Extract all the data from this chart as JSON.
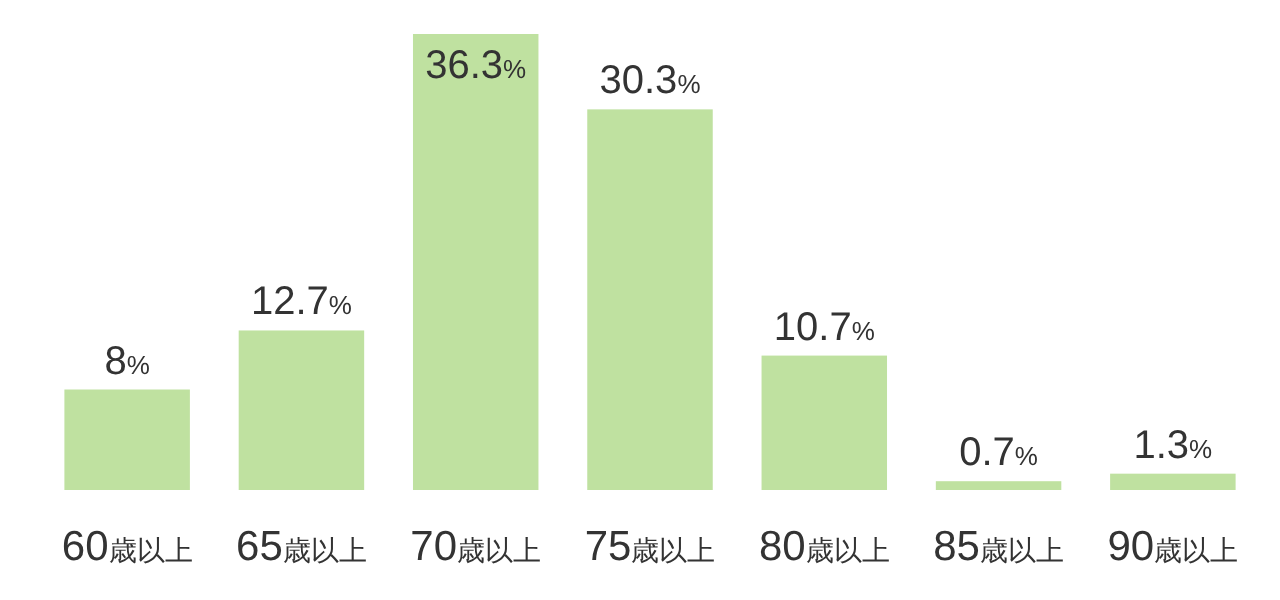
{
  "chart_data": {
    "type": "bar",
    "categories": [
      "60歳以上",
      "65歳以上",
      "70歳以上",
      "75歳以上",
      "80歳以上",
      "85歳以上",
      "90歳以上"
    ],
    "values": [
      8,
      12.7,
      36.3,
      30.3,
      10.7,
      0.7,
      1.3
    ],
    "value_labels": [
      "8%",
      "12.7%",
      "36.3%",
      "30.3%",
      "10.7%",
      "0.7%",
      "1.3%"
    ],
    "color": "#bfe1a0"
  }
}
